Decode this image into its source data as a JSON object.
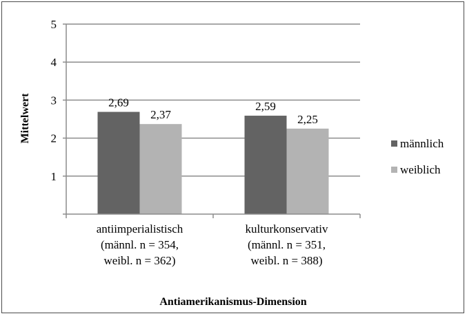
{
  "chart_data": {
    "type": "bar",
    "categories": [
      [
        "antiimperialistisch",
        "(männl. n = 354,",
        "weibl. n = 362)"
      ],
      [
        "kulturkonservativ",
        "(männl. n = 351,",
        "weibl. n = 388)"
      ]
    ],
    "series": [
      {
        "name": "männlich",
        "values": [
          2.69,
          2.59
        ],
        "labels": [
          "2,69",
          "2,59"
        ],
        "color": "#636363"
      },
      {
        "name": "weiblich",
        "values": [
          2.37,
          2.25
        ],
        "labels": [
          "2,37",
          "2,25"
        ],
        "color": "#b3b3b3"
      }
    ],
    "xlabel": "Antiamerikanismus-Dimension",
    "ylabel": "Mittelwert",
    "ylim": [
      0,
      5
    ],
    "yticks": [
      1,
      2,
      3,
      4,
      5
    ],
    "grid": true,
    "legend_position": "right"
  }
}
